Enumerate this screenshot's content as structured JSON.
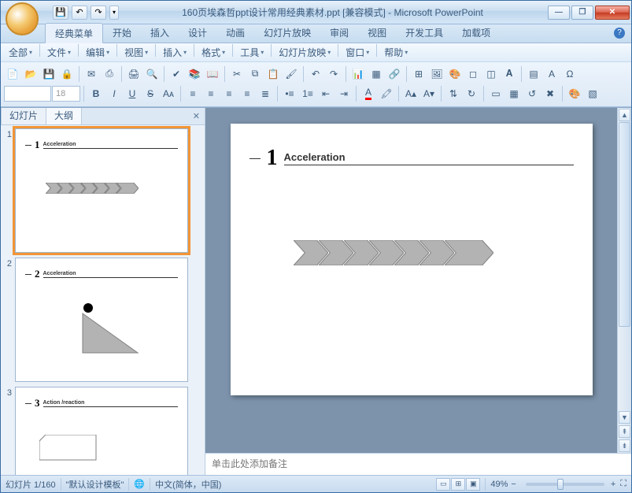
{
  "window": {
    "title": "160页埃森哲ppt设计常用经典素材.ppt [兼容模式] - Microsoft PowerPoint",
    "qat": {
      "save_icon": "💾",
      "undo_icon": "↶",
      "redo_icon": "↷",
      "dd_icon": "▾"
    },
    "controls": {
      "min": "—",
      "max": "❐",
      "close": "✕"
    }
  },
  "ribbonTabs": [
    "经典菜单",
    "开始",
    "插入",
    "设计",
    "动画",
    "幻灯片放映",
    "审阅",
    "视图",
    "开发工具",
    "加载项"
  ],
  "activeRibbonTab": 0,
  "menus": [
    "全部",
    "文件",
    "编辑",
    "视图",
    "插入",
    "格式",
    "工具",
    "幻灯片放映",
    "窗口",
    "帮助"
  ],
  "panelTabs": {
    "slides": "幻灯片",
    "outline": "大纲"
  },
  "slideMain": {
    "number": "1",
    "title": "Acceleration",
    "chevronCount": 7,
    "chevronColor": "#b3b3b3",
    "chevronBorder": "#808080"
  },
  "thumbs": [
    {
      "num": "1",
      "title": "Acceleration",
      "kind": "chevrons",
      "selected": true
    },
    {
      "num": "2",
      "title": "Acceleration",
      "kind": "triangle",
      "selected": false
    },
    {
      "num": "3",
      "title": "Action /reaction",
      "kind": "box",
      "selected": false
    }
  ],
  "notesPlaceholder": "单击此处添加备注",
  "status": {
    "slideCounter": "幻灯片 1/160",
    "template": "\"默认设计模板\"",
    "language": "中文(简体，中国)",
    "zoom": "49%"
  },
  "fontSize": "18",
  "colors": {
    "titlebar_grad_top": "#e8f1fa",
    "active_tab_bg": "#e8f1fb",
    "workspace_bg": "#7d93ab",
    "selection_orange": "#f29536"
  }
}
